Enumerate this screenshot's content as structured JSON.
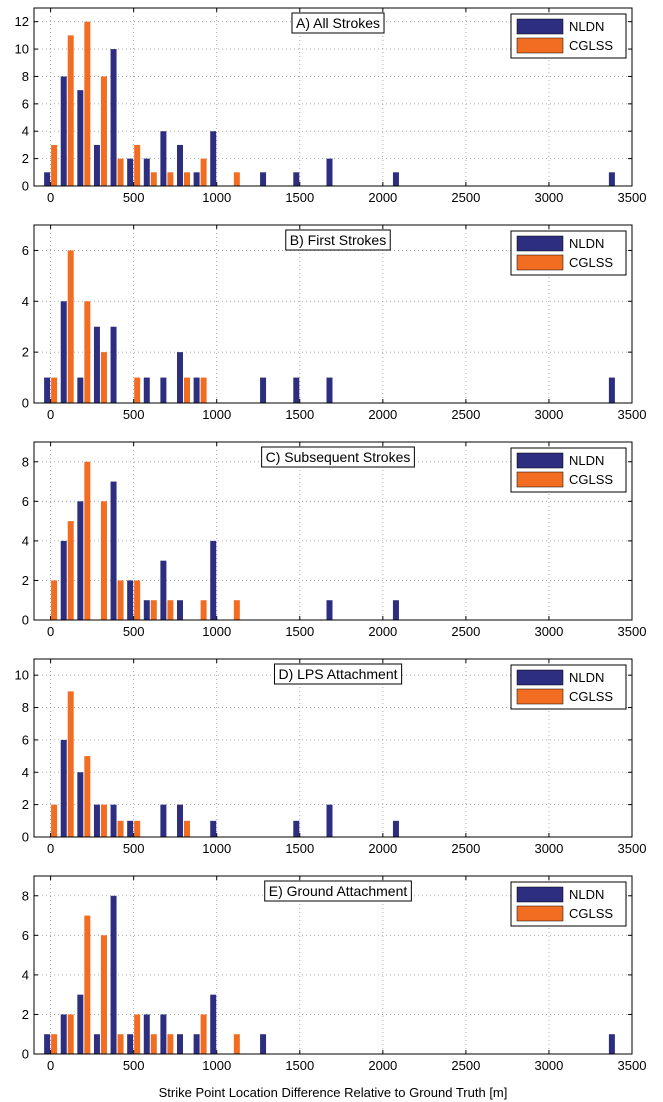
{
  "figure": {
    "xlabel": "Strike Point Location Difference Relative to Ground Truth [m]"
  },
  "chart_data": [
    {
      "type": "bar",
      "title": "A) All Strokes",
      "xlim": [
        -100,
        3500
      ],
      "xticks": [
        0,
        500,
        1000,
        1500,
        2000,
        2500,
        3000,
        3500
      ],
      "ylim": [
        0,
        13
      ],
      "yticks": [
        0,
        2,
        4,
        6,
        8,
        10,
        12
      ],
      "grid": true,
      "legend": "top-right",
      "colors": {
        "NLDN": "#2e2e80",
        "CGLSS": "#f26d21"
      },
      "x": [
        0,
        100,
        200,
        300,
        400,
        500,
        600,
        700,
        800,
        900,
        1000,
        1100,
        1300,
        1500,
        1700,
        2100,
        3400
      ],
      "series": [
        {
          "name": "NLDN",
          "values": [
            1,
            8,
            7,
            3,
            10,
            2,
            2,
            4,
            3,
            1,
            4,
            0,
            1,
            1,
            2,
            1,
            1
          ]
        },
        {
          "name": "CGLSS",
          "values": [
            3,
            11,
            12,
            8,
            2,
            3,
            1,
            1,
            1,
            2,
            0,
            1,
            0,
            0,
            0,
            0,
            0
          ]
        }
      ]
    },
    {
      "type": "bar",
      "title": "B) First Strokes",
      "xlim": [
        -100,
        3500
      ],
      "xticks": [
        0,
        500,
        1000,
        1500,
        2000,
        2500,
        3000,
        3500
      ],
      "ylim": [
        0,
        7
      ],
      "yticks": [
        0,
        2,
        4,
        6
      ],
      "grid": true,
      "legend": "top-right",
      "colors": {
        "NLDN": "#2e2e80",
        "CGLSS": "#f26d21"
      },
      "x": [
        0,
        100,
        200,
        300,
        400,
        500,
        600,
        700,
        800,
        900,
        1300,
        1500,
        1700,
        3400
      ],
      "series": [
        {
          "name": "NLDN",
          "values": [
            1,
            4,
            1,
            3,
            3,
            0,
            1,
            1,
            2,
            1,
            1,
            1,
            1,
            1
          ]
        },
        {
          "name": "CGLSS",
          "values": [
            1,
            6,
            4,
            2,
            0,
            1,
            0,
            0,
            1,
            1,
            0,
            0,
            0,
            0
          ]
        }
      ]
    },
    {
      "type": "bar",
      "title": "C) Subsequent Strokes",
      "xlim": [
        -100,
        3500
      ],
      "xticks": [
        0,
        500,
        1000,
        1500,
        2000,
        2500,
        3000,
        3500
      ],
      "ylim": [
        0,
        9
      ],
      "yticks": [
        0,
        2,
        4,
        6,
        8
      ],
      "grid": true,
      "legend": "top-right",
      "colors": {
        "NLDN": "#2e2e80",
        "CGLSS": "#f26d21"
      },
      "x": [
        0,
        100,
        200,
        300,
        400,
        500,
        600,
        700,
        800,
        900,
        1000,
        1100,
        1700,
        2100
      ],
      "series": [
        {
          "name": "NLDN",
          "values": [
            0,
            4,
            6,
            0,
            7,
            2,
            1,
            3,
            1,
            0,
            4,
            0,
            1,
            1
          ]
        },
        {
          "name": "CGLSS",
          "values": [
            2,
            5,
            8,
            6,
            2,
            2,
            1,
            1,
            0,
            1,
            0,
            1,
            0,
            0
          ]
        }
      ]
    },
    {
      "type": "bar",
      "title": "D) LPS Attachment",
      "xlim": [
        -100,
        3500
      ],
      "xticks": [
        0,
        500,
        1000,
        1500,
        2000,
        2500,
        3000,
        3500
      ],
      "ylim": [
        0,
        11
      ],
      "yticks": [
        0,
        2,
        4,
        6,
        8,
        10
      ],
      "grid": true,
      "legend": "top-right",
      "colors": {
        "NLDN": "#2e2e80",
        "CGLSS": "#f26d21"
      },
      "x": [
        0,
        100,
        200,
        300,
        400,
        500,
        700,
        800,
        1000,
        1500,
        1700,
        2100
      ],
      "series": [
        {
          "name": "NLDN",
          "values": [
            0,
            6,
            4,
            2,
            2,
            1,
            2,
            2,
            1,
            1,
            2,
            1
          ]
        },
        {
          "name": "CGLSS",
          "values": [
            2,
            9,
            5,
            2,
            1,
            1,
            0,
            1,
            0,
            0,
            0,
            0
          ]
        }
      ]
    },
    {
      "type": "bar",
      "title": "E) Ground Attachment",
      "xlim": [
        -100,
        3500
      ],
      "xticks": [
        0,
        500,
        1000,
        1500,
        2000,
        2500,
        3000,
        3500
      ],
      "ylim": [
        0,
        9
      ],
      "yticks": [
        0,
        2,
        4,
        6,
        8
      ],
      "grid": true,
      "legend": "top-right",
      "colors": {
        "NLDN": "#2e2e80",
        "CGLSS": "#f26d21"
      },
      "x": [
        0,
        100,
        200,
        300,
        400,
        500,
        600,
        700,
        800,
        900,
        1000,
        1100,
        1300,
        3400
      ],
      "series": [
        {
          "name": "NLDN",
          "values": [
            1,
            2,
            3,
            1,
            8,
            1,
            2,
            2,
            1,
            1,
            3,
            0,
            1,
            1
          ]
        },
        {
          "name": "CGLSS",
          "values": [
            1,
            2,
            7,
            6,
            1,
            2,
            1,
            1,
            0,
            2,
            0,
            1,
            0,
            0
          ]
        }
      ]
    }
  ]
}
